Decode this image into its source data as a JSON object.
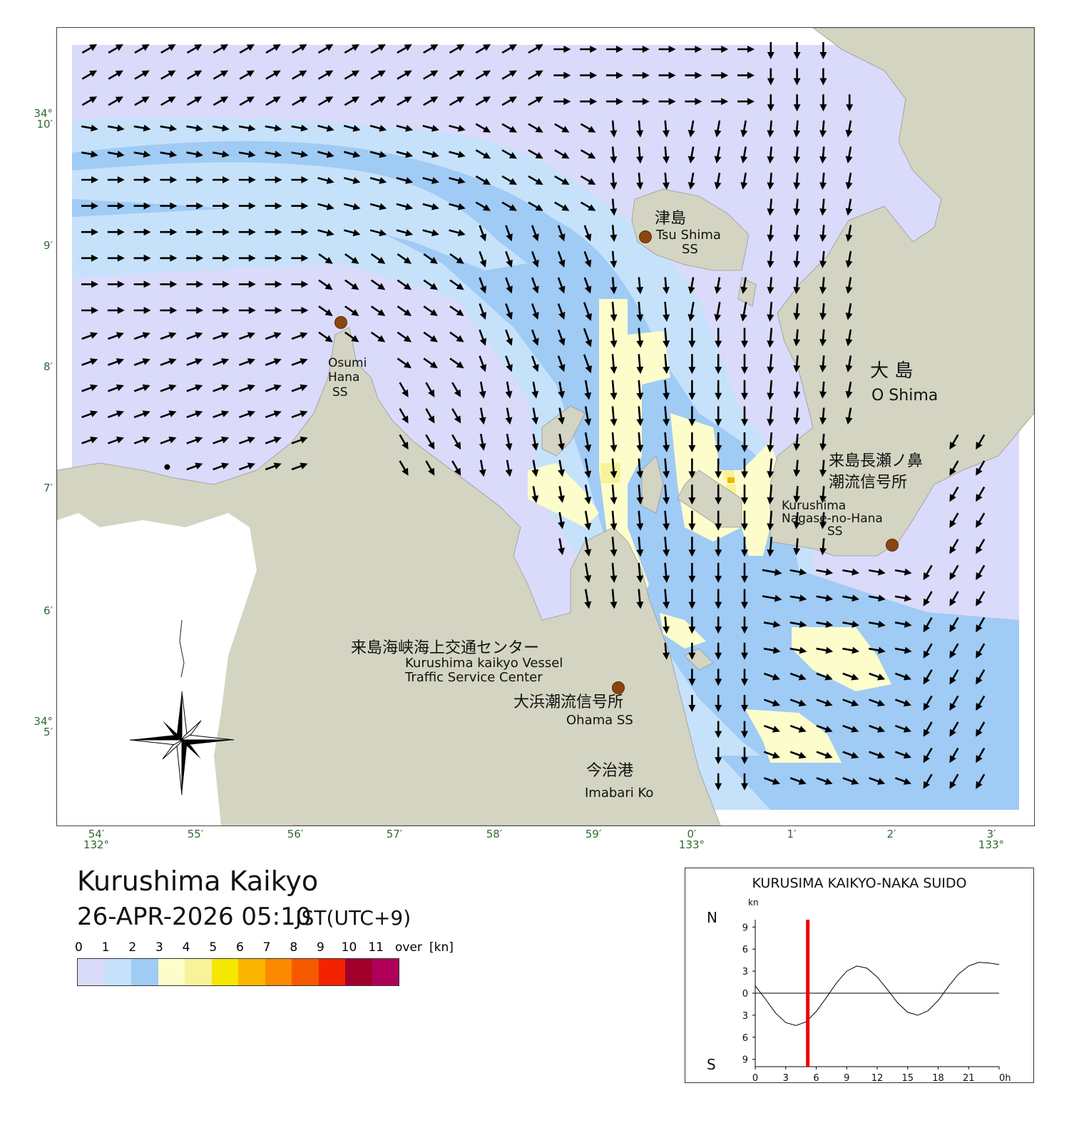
{
  "map": {
    "title": "Kurushima Kaikyo",
    "datetime": "26-APR-2026 05:10",
    "timezone": "JST(UTC+9)",
    "lat_labels": [
      {
        "deg": "34°",
        "min": "10′"
      },
      {
        "deg": "",
        "min": "9′"
      },
      {
        "deg": "",
        "min": "8′"
      },
      {
        "deg": "",
        "min": "7′"
      },
      {
        "deg": "",
        "min": "6′"
      },
      {
        "deg": "34°",
        "min": "5′"
      }
    ],
    "lon_labels": [
      {
        "min": "54′",
        "deg": "132°"
      },
      {
        "min": "55′",
        "deg": ""
      },
      {
        "min": "56′",
        "deg": ""
      },
      {
        "min": "57′",
        "deg": ""
      },
      {
        "min": "58′",
        "deg": ""
      },
      {
        "min": "59′",
        "deg": ""
      },
      {
        "min": "0′",
        "deg": "133°"
      },
      {
        "min": "1′",
        "deg": ""
      },
      {
        "min": "2′",
        "deg": ""
      },
      {
        "min": "3′",
        "deg": "133°"
      }
    ],
    "place_names": {
      "tsushima_jp": "津島",
      "tsushima_en": "Tsu Shima",
      "tsushima_ss": "SS",
      "oshima_jp": "大 島",
      "oshima_en": "O Shima",
      "osumi_1": "Osumi",
      "osumi_2": "Hana",
      "osumi_3": "SS",
      "nagase_jp1": "来島長瀬ノ鼻",
      "nagase_jp2": "潮流信号所",
      "nagase_en1": "Kurushima",
      "nagase_en2": "Nagase-no-Hana",
      "nagase_en3": "SS",
      "center_jp": "来島海峡海上交通センター",
      "center_en1": "Kurushima kaikyo Vessel",
      "center_en2": "Traffic Service Center",
      "ohama_jp": "大浜潮流信号所",
      "ohama_en": "Ohama SS",
      "imabari_jp": "今治港",
      "imabari_en": "Imabari Ko"
    },
    "colors": {
      "land": "#d4d4c2",
      "sea_0_1": "#dadafa",
      "sea_1_2": "#c6e2fb",
      "sea_2_3": "#9fcbf5",
      "sea_3_4": "#fdfdcc",
      "sea_4_5": "#f8f39a",
      "sea_5_6": "#f5e700",
      "arrow": "#000000",
      "station": "#8b4513"
    }
  },
  "legend": {
    "unit": "[kn]",
    "labels": [
      "0",
      "1",
      "2",
      "3",
      "4",
      "5",
      "6",
      "7",
      "8",
      "9",
      "10",
      "11",
      "over"
    ],
    "colors": [
      "#dadafa",
      "#c6e2fb",
      "#9fcbf5",
      "#fdfdcc",
      "#f8f39a",
      "#f5e700",
      "#f9b400",
      "#fc8a00",
      "#f65a00",
      "#f42200",
      "#a0002b",
      "#b0005a"
    ]
  },
  "tide": {
    "title": "KURUSIMA KAIKYO-NAKA SUIDO",
    "unit": "kn",
    "north": "N",
    "south": "S",
    "y_ticks": [
      "9",
      "6",
      "3",
      "0",
      "3",
      "6",
      "9"
    ],
    "x_ticks": [
      "0",
      "3",
      "6",
      "9",
      "12",
      "15",
      "18",
      "21",
      "0h"
    ],
    "current_hour": 5.17,
    "curve_kn": [
      {
        "h": 0,
        "v": 1.0
      },
      {
        "h": 1,
        "v": -0.8
      },
      {
        "h": 2,
        "v": -2.7
      },
      {
        "h": 3,
        "v": -4.0
      },
      {
        "h": 4,
        "v": -4.4
      },
      {
        "h": 5,
        "v": -3.9
      },
      {
        "h": 6,
        "v": -2.5
      },
      {
        "h": 7,
        "v": -0.6
      },
      {
        "h": 8,
        "v": 1.4
      },
      {
        "h": 9,
        "v": 3.0
      },
      {
        "h": 10,
        "v": 3.7
      },
      {
        "h": 11,
        "v": 3.4
      },
      {
        "h": 12,
        "v": 2.2
      },
      {
        "h": 13,
        "v": 0.5
      },
      {
        "h": 14,
        "v": -1.3
      },
      {
        "h": 15,
        "v": -2.6
      },
      {
        "h": 16,
        "v": -3.0
      },
      {
        "h": 17,
        "v": -2.4
      },
      {
        "h": 18,
        "v": -1.0
      },
      {
        "h": 19,
        "v": 0.9
      },
      {
        "h": 20,
        "v": 2.6
      },
      {
        "h": 21,
        "v": 3.7
      },
      {
        "h": 22,
        "v": 4.2
      },
      {
        "h": 23,
        "v": 4.1
      },
      {
        "h": 24,
        "v": 3.9
      }
    ]
  }
}
